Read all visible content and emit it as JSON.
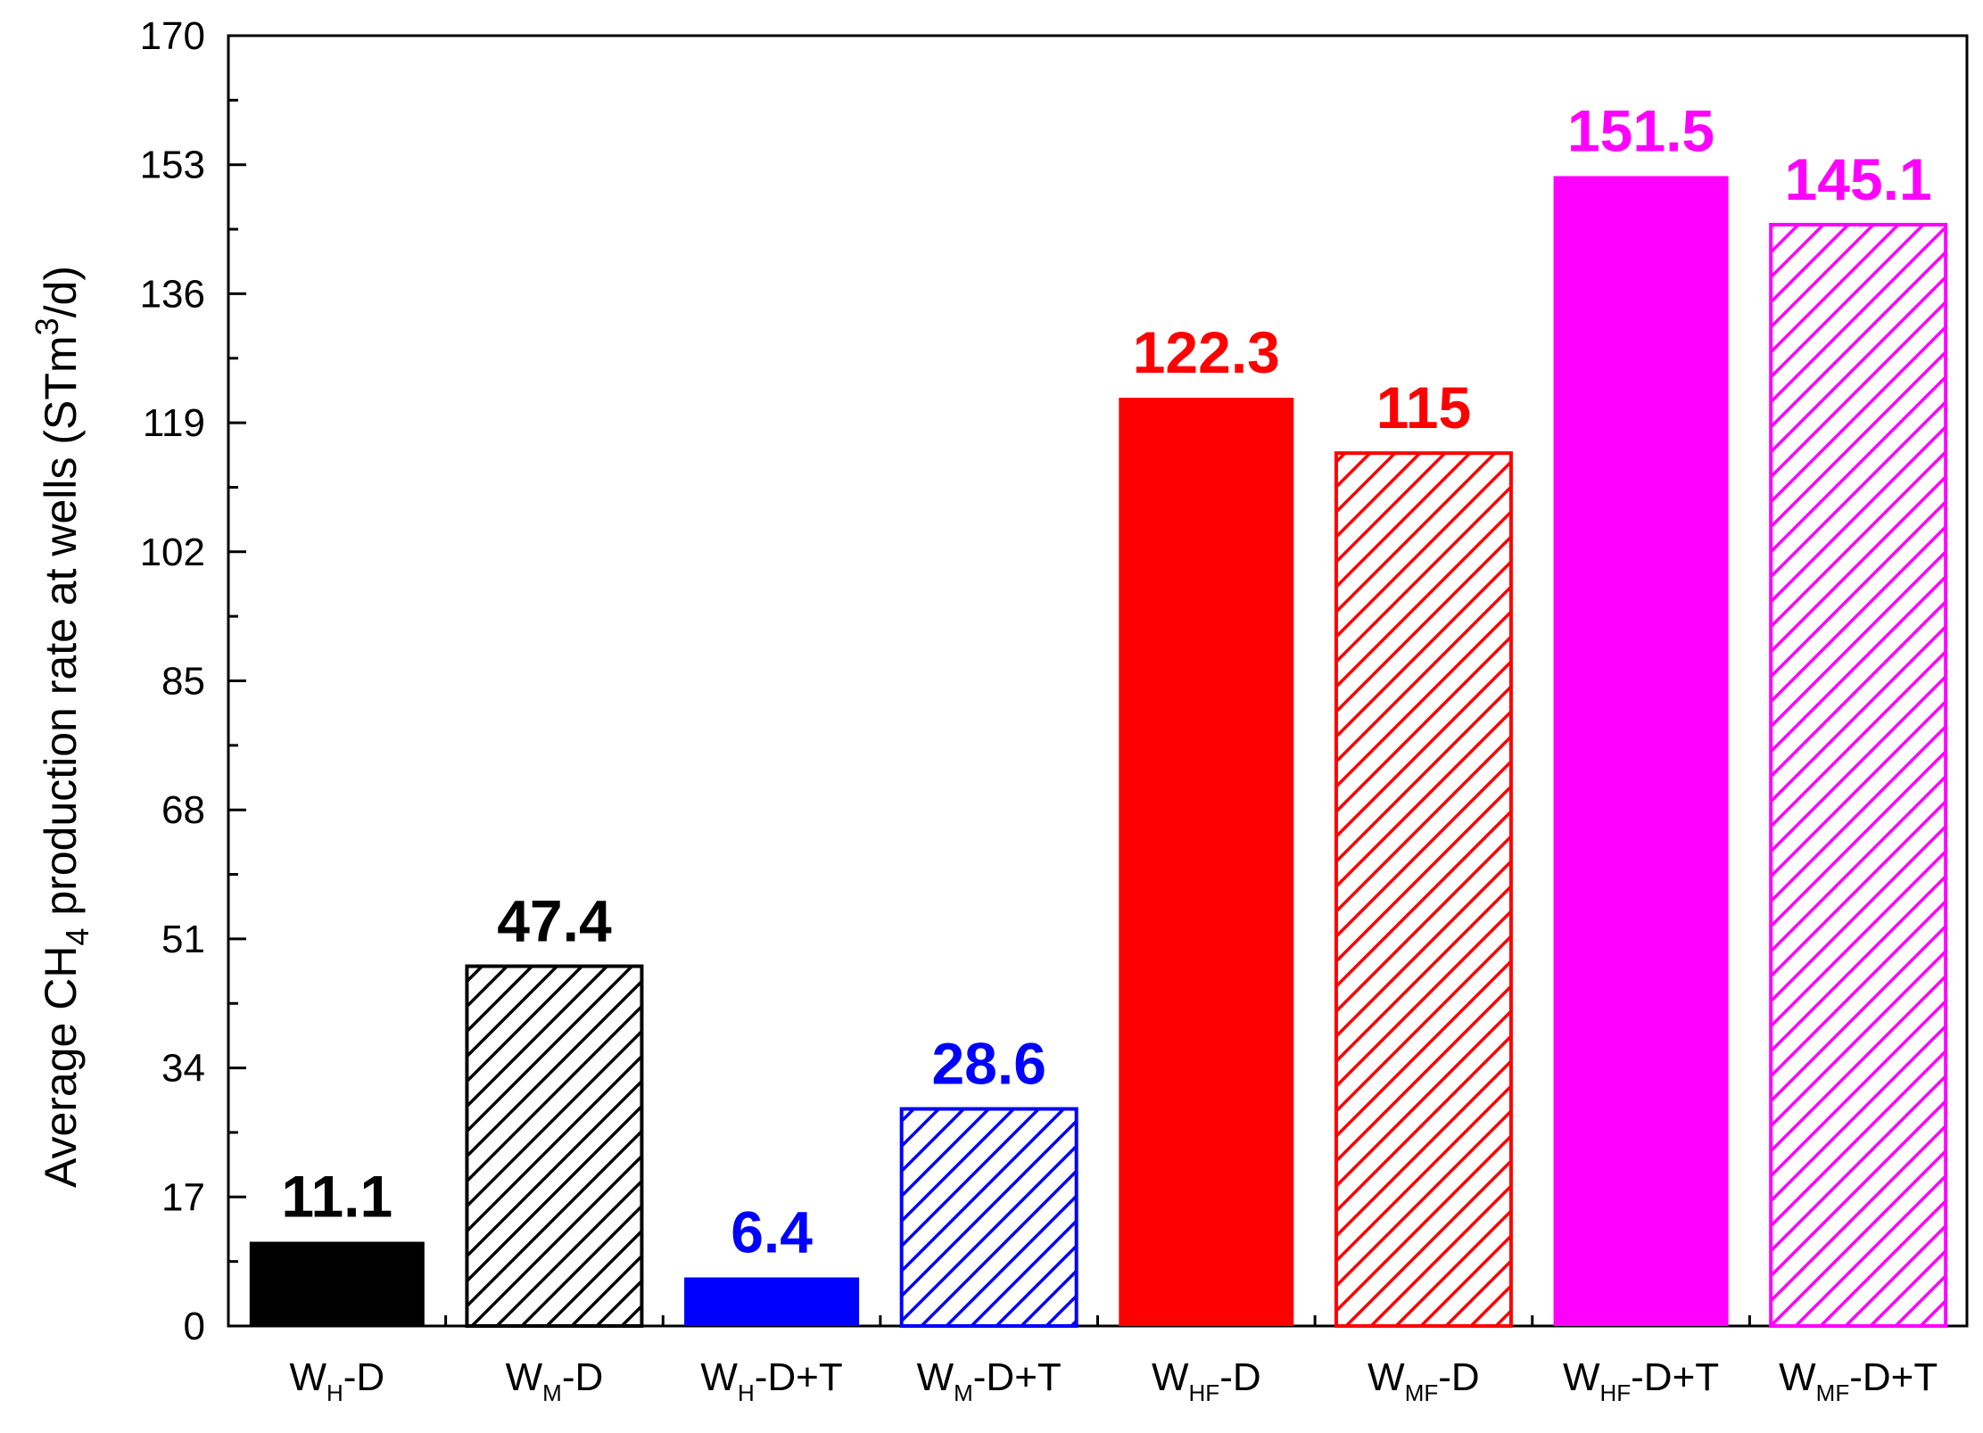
{
  "chart_data": {
    "type": "bar",
    "ylabel": {
      "prefix": "Average CH",
      "sub": "4",
      "middle": " production rate at wells ",
      "unit_open": "(STm",
      "unit_sup": "3",
      "unit_close": "/d)"
    },
    "ylim": [
      0,
      170
    ],
    "yticks": [
      0,
      17,
      34,
      51,
      68,
      85,
      102,
      119,
      136,
      153,
      170
    ],
    "grid": false,
    "categories": [
      {
        "main": "W",
        "sub": "H",
        "suffix": "-D"
      },
      {
        "main": "W",
        "sub": "M",
        "suffix": "-D"
      },
      {
        "main": "W",
        "sub": "H",
        "suffix": "-D+T"
      },
      {
        "main": "W",
        "sub": "M",
        "suffix": "-D+T"
      },
      {
        "main": "W",
        "sub": "HF",
        "suffix": "-D"
      },
      {
        "main": "W",
        "sub": "MF",
        "suffix": "-D"
      },
      {
        "main": "W",
        "sub": "HF",
        "suffix": "-D+T"
      },
      {
        "main": "W",
        "sub": "MF",
        "suffix": "-D+T"
      }
    ],
    "values": [
      11.1,
      47.4,
      6.4,
      28.6,
      122.3,
      115,
      151.5,
      145.1
    ],
    "value_labels": [
      "11.1",
      "47.4",
      "6.4",
      "28.6",
      "122.3",
      "115",
      "151.5",
      "145.1"
    ],
    "colors": [
      "#000000",
      "#000000",
      "#0000ff",
      "#0000ff",
      "#ff0000",
      "#ff0000",
      "#ff00ff",
      "#ff00ff"
    ],
    "fill_styles": [
      "solid",
      "hatched",
      "solid",
      "hatched",
      "solid",
      "hatched",
      "solid",
      "hatched"
    ]
  }
}
